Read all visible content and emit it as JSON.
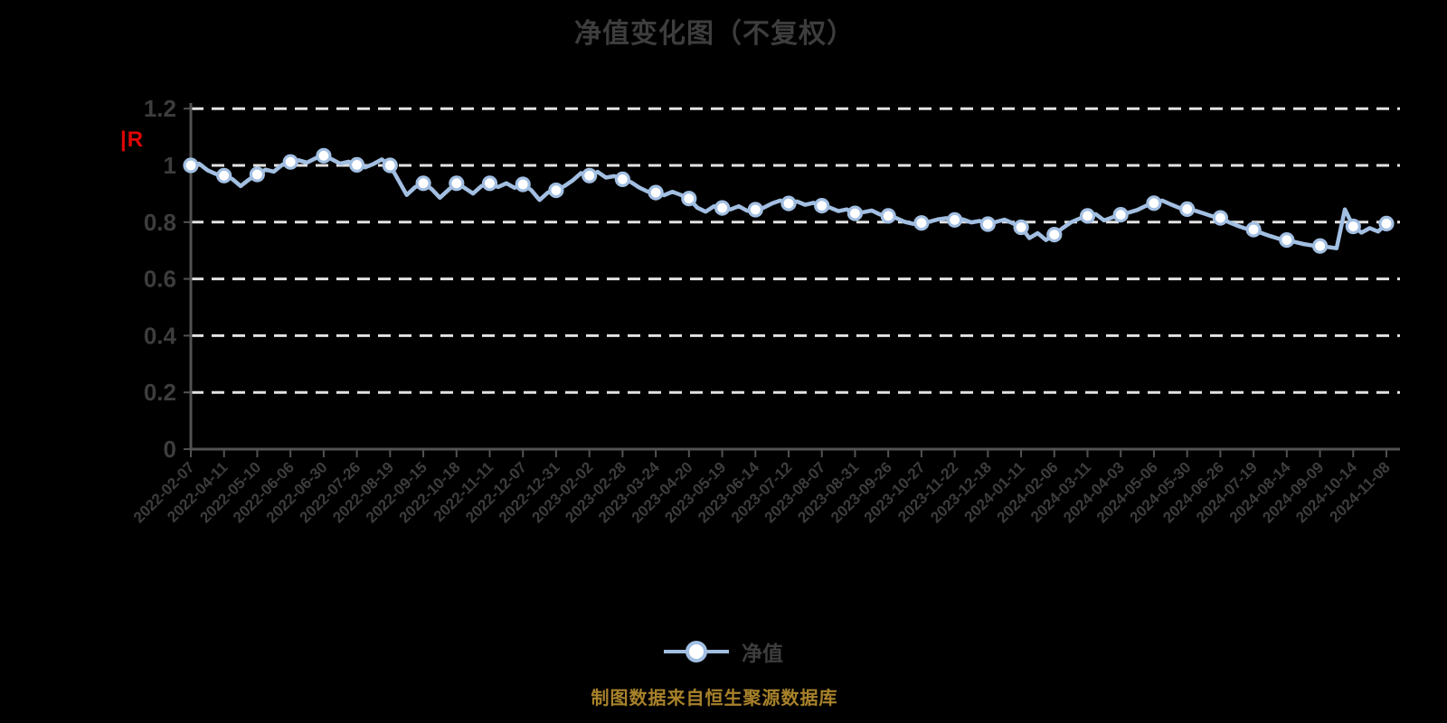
{
  "title": "净值变化图（不复权）",
  "watermark": "|R",
  "legend": {
    "label": "净值"
  },
  "caption": "制图数据来自恒生聚源数据库",
  "colors": {
    "background": "#000000",
    "text": "#3d3d3d",
    "grid": "#e2e2e2",
    "axis": "#525252",
    "line": "#a2bfe2",
    "marker_fill": "#ffffff",
    "caption": "#a8822a",
    "watermark": "#e00505"
  },
  "chart_data": {
    "type": "line",
    "title": "净值变化图（不复权）",
    "series_name": "净值",
    "xlabel": "",
    "ylabel": "",
    "ylim": [
      0,
      1.2
    ],
    "yticks": [
      0,
      0.2,
      0.4,
      0.6,
      0.8,
      1,
      1.2
    ],
    "ytick_labels": [
      "0",
      "0.2",
      "0.4",
      "0.6",
      "0.8",
      "1",
      "1.2"
    ],
    "grid": "horizontal-dashed",
    "legend_position": "bottom",
    "categories": [
      "2022-02-07",
      "2022-04-11",
      "2022-05-10",
      "2022-06-06",
      "2022-06-30",
      "2022-07-26",
      "2022-08-19",
      "2022-09-15",
      "2022-10-18",
      "2022-11-11",
      "2022-12-07",
      "2022-12-31",
      "2023-02-02",
      "2023-02-28",
      "2023-03-24",
      "2023-04-20",
      "2023-05-19",
      "2023-06-14",
      "2023-07-12",
      "2023-08-07",
      "2023-08-31",
      "2023-09-26",
      "2023-10-27",
      "2023-11-22",
      "2023-12-18",
      "2024-01-11",
      "2024-02-06",
      "2024-03-11",
      "2024-04-03",
      "2024-05-06",
      "2024-05-30",
      "2024-06-26",
      "2024-07-19",
      "2024-08-14",
      "2024-09-09",
      "2024-10-14",
      "2024-11-08"
    ],
    "values": [
      1.0,
      0.964,
      0.968,
      1.012,
      1.034,
      1.002,
      1.0,
      0.937,
      0.937,
      0.937,
      0.933,
      0.912,
      0.964,
      0.951,
      0.904,
      0.883,
      0.85,
      0.844,
      0.866,
      0.858,
      0.831,
      0.822,
      0.797,
      0.808,
      0.793,
      0.782,
      0.756,
      0.822,
      0.826,
      0.867,
      0.846,
      0.815,
      0.774,
      0.737,
      0.716,
      0.785,
      0.795
    ],
    "dense_values": [
      1.0,
      1.006,
      0.983,
      0.97,
      0.964,
      0.952,
      0.927,
      0.95,
      0.968,
      0.985,
      0.978,
      1.002,
      1.012,
      1.018,
      1.01,
      1.025,
      1.034,
      1.021,
      1.006,
      1.013,
      1.002,
      0.993,
      1.005,
      1.021,
      1.0,
      0.948,
      0.896,
      0.923,
      0.937,
      0.917,
      0.886,
      0.913,
      0.937,
      0.92,
      0.901,
      0.927,
      0.937,
      0.924,
      0.937,
      0.921,
      0.933,
      0.913,
      0.878,
      0.904,
      0.912,
      0.927,
      0.947,
      0.973,
      0.964,
      0.977,
      0.957,
      0.962,
      0.951,
      0.941,
      0.922,
      0.908,
      0.904,
      0.895,
      0.907,
      0.896,
      0.883,
      0.851,
      0.837,
      0.856,
      0.85,
      0.845,
      0.856,
      0.84,
      0.844,
      0.851,
      0.866,
      0.876,
      0.866,
      0.873,
      0.861,
      0.868,
      0.858,
      0.851,
      0.839,
      0.845,
      0.831,
      0.835,
      0.841,
      0.827,
      0.822,
      0.814,
      0.801,
      0.794,
      0.797,
      0.802,
      0.81,
      0.814,
      0.808,
      0.81,
      0.799,
      0.804,
      0.793,
      0.801,
      0.809,
      0.796,
      0.782,
      0.744,
      0.761,
      0.737,
      0.756,
      0.779,
      0.799,
      0.812,
      0.822,
      0.828,
      0.806,
      0.817,
      0.826,
      0.834,
      0.843,
      0.857,
      0.867,
      0.876,
      0.863,
      0.851,
      0.846,
      0.84,
      0.831,
      0.821,
      0.815,
      0.8,
      0.788,
      0.778,
      0.774,
      0.761,
      0.751,
      0.742,
      0.737,
      0.73,
      0.723,
      0.718,
      0.716,
      0.712,
      0.708,
      0.845,
      0.785,
      0.763,
      0.779,
      0.767,
      0.795
    ]
  }
}
